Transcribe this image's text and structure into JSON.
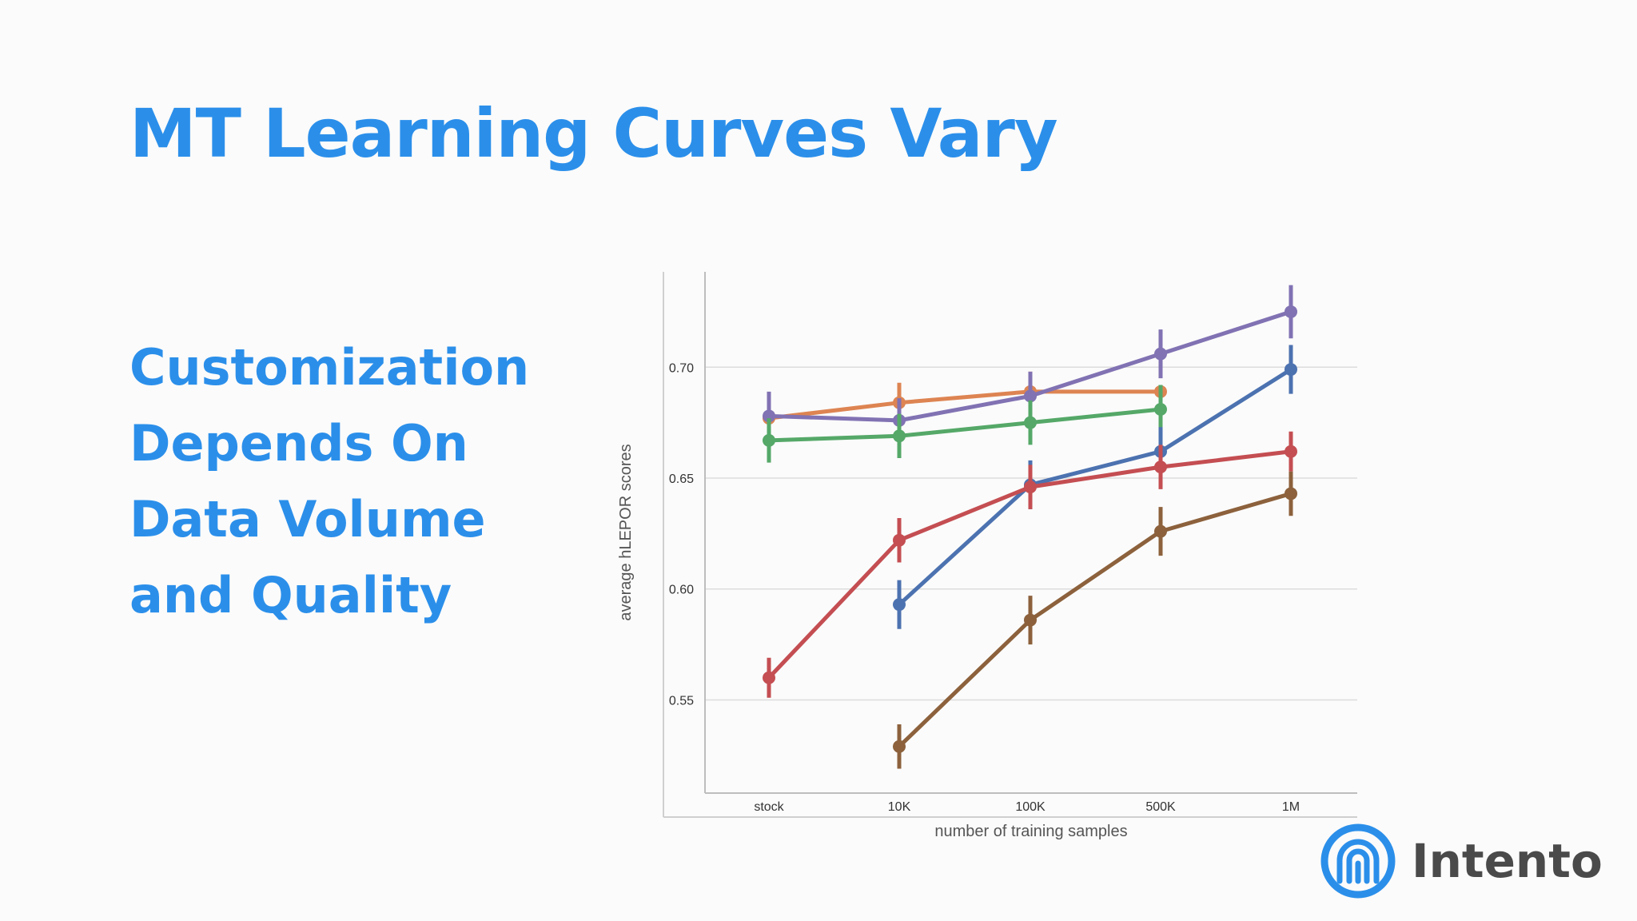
{
  "slide": {
    "title": "MT Learning Curves Vary",
    "bullet_lines": [
      "Customization",
      "Depends On",
      "Data Volume",
      "and Quality"
    ],
    "logo_text": "Intento"
  },
  "colors": {
    "accent": "#2b8fea",
    "logo_text": "#4a4a4a",
    "gridline": "#dcdcdc",
    "axis": "#bdbdbd"
  },
  "chart_data": {
    "type": "line",
    "title": "",
    "xlabel": "number of training samples",
    "ylabel": "average hLEPOR scores",
    "categories": [
      "stock",
      "10K",
      "100K",
      "500K",
      "1M"
    ],
    "y_ticks": [
      "0.55",
      "0.60",
      "0.65",
      "0.70"
    ],
    "ylim": [
      0.508,
      0.743
    ],
    "grid": true,
    "legend": "none",
    "series": [
      {
        "color": "#dd8452",
        "values": [
          0.677,
          0.684,
          0.689,
          0.689,
          null
        ],
        "err": [
          0.008,
          0.009,
          0.009,
          0.0,
          null
        ]
      },
      {
        "color": "#8172b3",
        "values": [
          0.678,
          0.676,
          0.687,
          0.706,
          0.725
        ],
        "err": [
          0.011,
          0.01,
          0.011,
          0.011,
          0.012
        ]
      },
      {
        "color": "#55a868",
        "values": [
          0.667,
          0.669,
          0.675,
          0.681,
          null
        ],
        "err": [
          0.01,
          0.01,
          0.01,
          0.011,
          null
        ]
      },
      {
        "color": "#4c72b0",
        "values": [
          null,
          0.593,
          0.647,
          0.662,
          0.699
        ],
        "err": [
          null,
          0.011,
          0.011,
          0.011,
          0.011
        ]
      },
      {
        "color": "#c44e52",
        "values": [
          0.56,
          0.622,
          0.646,
          0.655,
          0.662
        ],
        "err": [
          0.009,
          0.01,
          0.01,
          0.01,
          0.009
        ]
      },
      {
        "color": "#8c613c",
        "values": [
          null,
          0.529,
          0.586,
          0.626,
          0.643
        ],
        "err": [
          null,
          0.01,
          0.011,
          0.011,
          0.01
        ]
      }
    ]
  }
}
